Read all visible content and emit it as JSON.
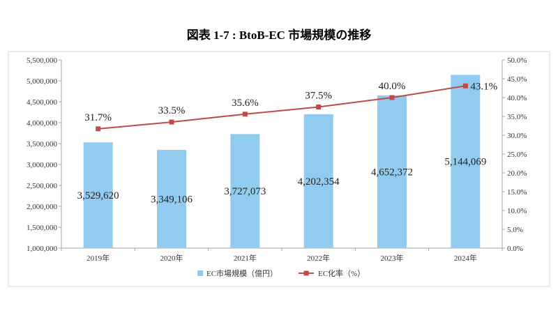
{
  "title": "図表 1-7 : BtoB-EC 市場規模の推移",
  "chart_data": {
    "type": "bar",
    "title": "図表 1-7 : BtoB-EC 市場規模の推移",
    "categories": [
      "2019年",
      "2020年",
      "2021年",
      "2022年",
      "2023年",
      "2024年"
    ],
    "series": [
      {
        "name": "EC市場規模（億円）",
        "type": "bar",
        "axis": "left",
        "color": "#92cbf0",
        "values": [
          3529620,
          3349106,
          3727073,
          4202354,
          4652372,
          5144069
        ],
        "labels": [
          "3,529,620",
          "3,349,106",
          "3,727,073",
          "4,202,354",
          "4,652,372",
          "5,144,069"
        ],
        "label_position": "center"
      },
      {
        "name": "EC化率（%）",
        "type": "line",
        "axis": "right",
        "color": "#be4b48",
        "marker": "square",
        "values": [
          31.7,
          33.5,
          35.6,
          37.5,
          40.0,
          43.1
        ],
        "labels": [
          "31.7%",
          "33.5%",
          "35.6%",
          "37.5%",
          "40.0%",
          "43.1%"
        ],
        "label_positions": [
          "above",
          "above",
          "above",
          "above",
          "above",
          "right"
        ]
      }
    ],
    "y_left": {
      "min": 1000000,
      "max": 5500000,
      "step": 500000,
      "tick_labels": [
        "1,000,000",
        "1,500,000",
        "2,000,000",
        "2,500,000",
        "3,000,000",
        "3,500,000",
        "4,000,000",
        "4,500,000",
        "5,000,000",
        "5,500,000"
      ]
    },
    "y_right": {
      "min": 0,
      "max": 50,
      "step": 5,
      "tick_labels": [
        "0.0%",
        "5.0%",
        "10.0%",
        "15.0%",
        "20.0%",
        "25.0%",
        "30.0%",
        "35.0%",
        "40.0%",
        "45.0%",
        "50.0%"
      ]
    },
    "grid": false,
    "legend": "bottom"
  }
}
